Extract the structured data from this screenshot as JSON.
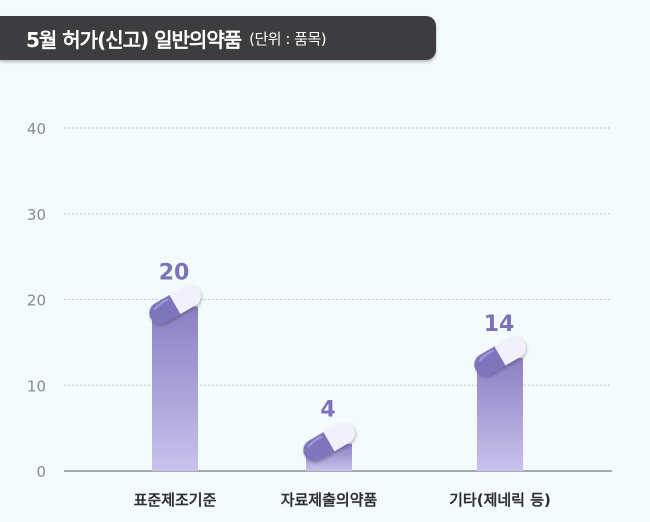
{
  "title": {
    "main": "5월 허가(신고) 일반의약품",
    "unit": "(단위 : 품목)"
  },
  "chart_data": {
    "type": "bar",
    "categories": [
      "표준제조기준",
      "자료제출의약품",
      "기타(제네릭 등)"
    ],
    "values": [
      20,
      4,
      14
    ],
    "data_labels": [
      "20",
      "4",
      "14"
    ],
    "y_ticks": [
      "40",
      "30",
      "20",
      "10",
      "0"
    ],
    "ylim": [
      0,
      40
    ],
    "xlabel": "",
    "ylabel": "",
    "grid": true,
    "colors": {
      "bar_top": "#8a80c4",
      "bar_bottom": "#c9c2ec",
      "label": "#7b72b8",
      "capsule_dark": "#7f75bd",
      "capsule_light": "#f2f1fb"
    }
  }
}
